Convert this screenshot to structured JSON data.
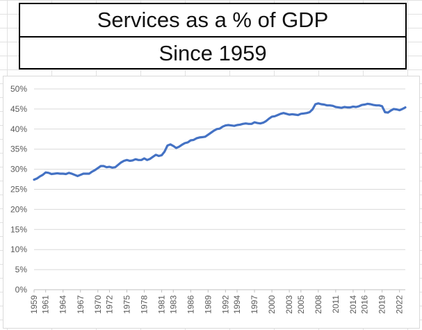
{
  "title_box": {
    "title": "Services as a % of GDP",
    "subtitle": "Since 1959"
  },
  "chart_data": {
    "type": "line",
    "title": "Services as a % of GDP",
    "subtitle": "Since 1959",
    "xlabel": "",
    "ylabel": "",
    "ylim": [
      0,
      50
    ],
    "ytick_labels": [
      "0%",
      "5%",
      "10%",
      "15%",
      "20%",
      "25%",
      "30%",
      "35%",
      "40%",
      "45%",
      "50%"
    ],
    "xtick_labels": [
      "1959",
      "1961",
      "1964",
      "1967",
      "1970",
      "1972",
      "1975",
      "1978",
      "1981",
      "1983",
      "1986",
      "1989",
      "1992",
      "1994",
      "1997",
      "2000",
      "2003",
      "2005",
      "2008",
      "2011",
      "2014",
      "2016",
      "2019",
      "2022"
    ],
    "xlim": [
      1959,
      2023
    ],
    "grid": "horizontal",
    "legend": "none",
    "line_color": "#4472C4",
    "series": [
      {
        "x": [
          1959.0,
          1959.5,
          1960.0,
          1960.5,
          1961.0,
          1961.5,
          1962.0,
          1962.5,
          1963.0,
          1963.5,
          1964.0,
          1964.5,
          1965.0,
          1965.5,
          1966.0,
          1966.5,
          1967.0,
          1967.5,
          1968.0,
          1968.5,
          1969.0,
          1969.5,
          1970.0,
          1970.5,
          1971.0,
          1971.5,
          1972.0,
          1972.5,
          1973.0,
          1973.5,
          1974.0,
          1974.5,
          1975.0,
          1975.5,
          1976.0,
          1976.5,
          1977.0,
          1977.5,
          1978.0,
          1978.5,
          1979.0,
          1979.5,
          1980.0,
          1980.5,
          1981.0,
          1981.5,
          1982.0,
          1982.5,
          1983.0,
          1983.5,
          1984.0,
          1984.5,
          1985.0,
          1985.5,
          1986.0,
          1986.5,
          1987.0,
          1987.5,
          1988.0,
          1988.5,
          1989.0,
          1989.5,
          1990.0,
          1990.5,
          1991.0,
          1991.5,
          1992.0,
          1992.5,
          1993.0,
          1993.5,
          1994.0,
          1994.5,
          1995.0,
          1995.5,
          1996.0,
          1996.5,
          1997.0,
          1997.5,
          1998.0,
          1998.5,
          1999.0,
          1999.5,
          2000.0,
          2000.5,
          2001.0,
          2001.5,
          2002.0,
          2002.5,
          2003.0,
          2003.5,
          2004.0,
          2004.5,
          2005.0,
          2005.5,
          2006.0,
          2006.5,
          2007.0,
          2007.5,
          2008.0,
          2008.5,
          2009.0,
          2009.5,
          2010.0,
          2010.5,
          2011.0,
          2011.5,
          2012.0,
          2012.5,
          2013.0,
          2013.5,
          2014.0,
          2014.5,
          2015.0,
          2015.5,
          2016.0,
          2016.5,
          2017.0,
          2017.5,
          2018.0,
          2018.5,
          2019.0,
          2019.5,
          2020.0,
          2020.5,
          2021.0,
          2021.5,
          2022.0,
          2022.5,
          2023.0
        ],
        "values": [
          27.4,
          27.7,
          28.2,
          28.6,
          29.2,
          29.1,
          28.8,
          28.9,
          29.0,
          28.9,
          28.9,
          28.8,
          29.1,
          28.9,
          28.6,
          28.3,
          28.6,
          28.9,
          28.9,
          28.9,
          29.4,
          29.8,
          30.3,
          30.8,
          30.8,
          30.5,
          30.6,
          30.4,
          30.5,
          31.1,
          31.7,
          32.1,
          32.3,
          32.1,
          32.2,
          32.5,
          32.3,
          32.3,
          32.7,
          32.3,
          32.6,
          33.1,
          33.6,
          33.3,
          33.5,
          34.4,
          35.9,
          36.2,
          35.8,
          35.3,
          35.6,
          36.1,
          36.5,
          36.7,
          37.2,
          37.3,
          37.7,
          37.9,
          38.0,
          38.1,
          38.6,
          39.1,
          39.6,
          40.0,
          40.1,
          40.6,
          40.9,
          41.0,
          40.9,
          40.8,
          41.0,
          41.1,
          41.3,
          41.4,
          41.3,
          41.3,
          41.7,
          41.5,
          41.4,
          41.6,
          42.0,
          42.6,
          43.1,
          43.2,
          43.5,
          43.8,
          44.0,
          43.8,
          43.6,
          43.7,
          43.6,
          43.5,
          43.8,
          43.9,
          44.0,
          44.2,
          44.9,
          46.2,
          46.4,
          46.2,
          46.1,
          45.9,
          45.9,
          45.8,
          45.5,
          45.4,
          45.3,
          45.5,
          45.4,
          45.4,
          45.6,
          45.5,
          45.7,
          46.0,
          46.1,
          46.3,
          46.2,
          46.0,
          45.9,
          45.9,
          45.7,
          44.2,
          44.1,
          44.6,
          45.0,
          44.9,
          44.7,
          45.0,
          45.4
        ]
      }
    ]
  }
}
